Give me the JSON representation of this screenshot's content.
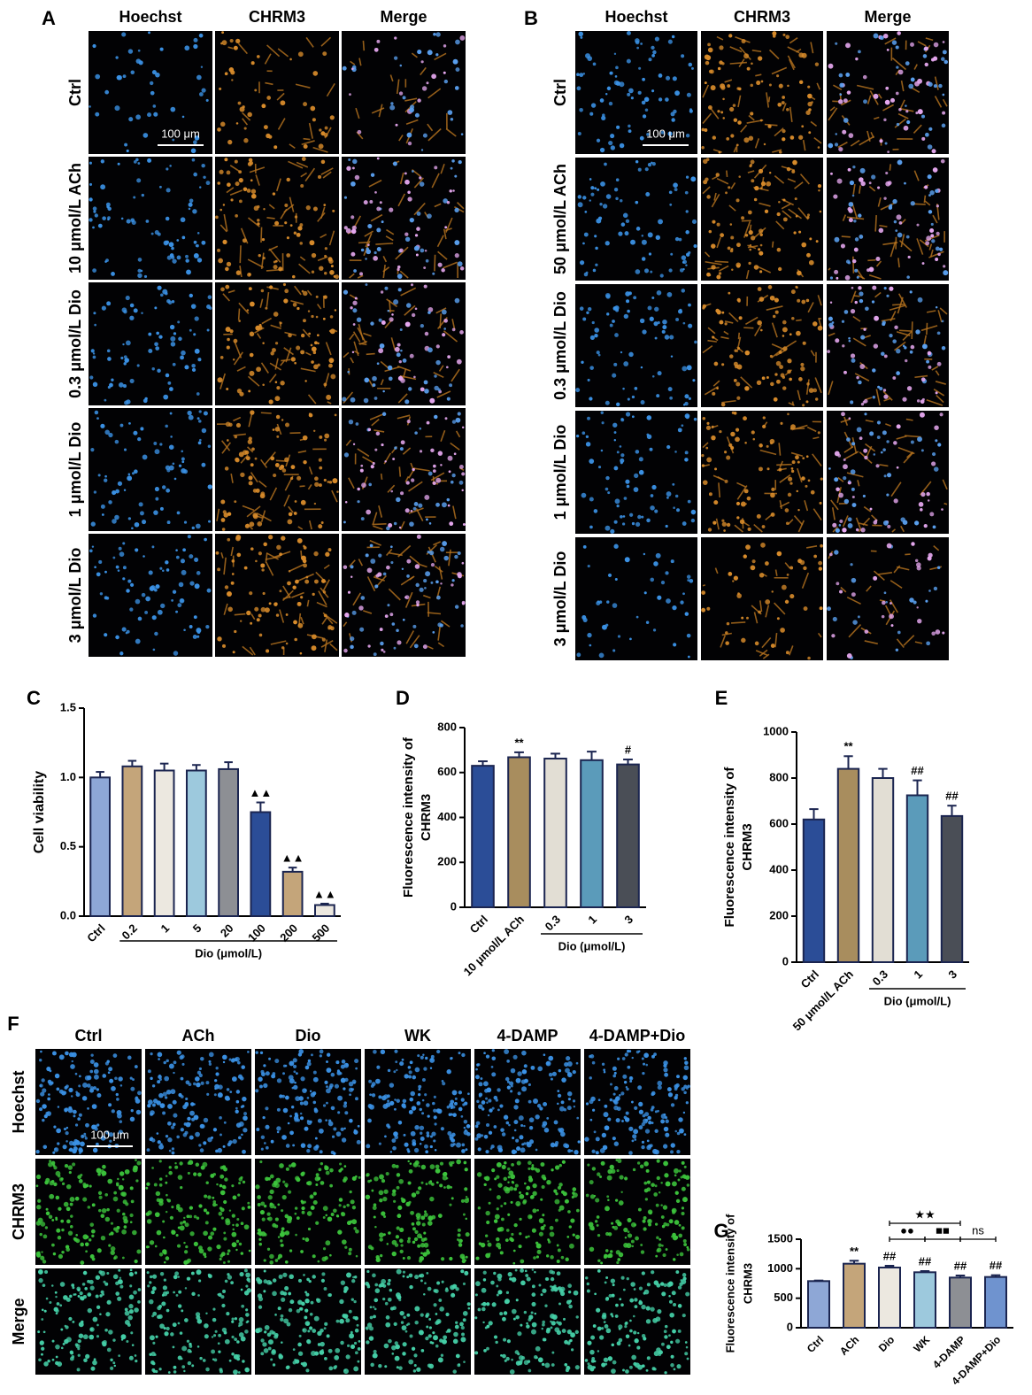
{
  "panels": [
    {
      "letter": "A",
      "columns": [
        "Hoechst",
        "CHRM3",
        "Merge"
      ],
      "rows": [
        "Ctrl",
        "10 μmol/L ACh",
        "0.3 μmol/L Dio",
        "1 μmol/L Dio",
        "3 μmol/L Dio"
      ],
      "scale_bar": "100 μm"
    },
    {
      "letter": "B",
      "columns": [
        "Hoechst",
        "CHRM3",
        "Merge"
      ],
      "rows": [
        "Ctrl",
        "50 μmol/L ACh",
        "0.3 μmol/L Dio",
        "1 μmol/L Dio",
        "3 μmol/L Dio"
      ],
      "scale_bar": "100 μm"
    },
    {
      "letter": "F",
      "columns": [
        "Ctrl",
        "ACh",
        "Dio",
        "WK",
        "4-DAMP",
        "4-DAMP+Dio"
      ],
      "rows": [
        "Hoechst",
        "CHRM3",
        "Merge"
      ],
      "scale_bar": "100 μm"
    }
  ],
  "chart_data": [
    {
      "type": "bar",
      "panel": "C",
      "ylabel": [
        "Cell viability"
      ],
      "categories": [
        "Ctrl",
        "0.2",
        "1",
        "5",
        "20",
        "100",
        "200",
        "500"
      ],
      "values": [
        1.0,
        1.08,
        1.05,
        1.05,
        1.06,
        0.75,
        0.32,
        0.08
      ],
      "errors": [
        0.04,
        0.04,
        0.05,
        0.04,
        0.05,
        0.07,
        0.03,
        0.01
      ],
      "colors": [
        "#8ea7d6",
        "#c4a57a",
        "#ece8e0",
        "#9dc9dd",
        "#8d8f94",
        "#2b4d97",
        "#c4a57a",
        "#ece8e0"
      ],
      "annotations": [
        null,
        null,
        null,
        null,
        null,
        "▲▲",
        "▲▲",
        "▲▲"
      ],
      "group": {
        "label": "Dio (μmol/L)",
        "from": "0.2",
        "to": "500"
      },
      "ylim": [
        0,
        1.5
      ],
      "yticks": [
        {
          "value": 0,
          "label": "0.0"
        },
        0.5,
        {
          "value": 1,
          "label": "1.0"
        },
        1.5
      ]
    },
    {
      "type": "bar",
      "panel": "D",
      "ylabel": [
        "Fluorescence intensity of",
        "CHRM3"
      ],
      "categories": [
        "Ctrl",
        "10 μmol/L ACh",
        "0.3",
        "1",
        "3"
      ],
      "values": [
        630,
        668,
        662,
        655,
        636
      ],
      "errors": [
        20,
        22,
        22,
        38,
        22
      ],
      "colors": [
        "#2b4d97",
        "#a88d5e",
        "#e2ded4",
        "#5b9bba",
        "#4a4e56"
      ],
      "annotations": [
        null,
        "**",
        null,
        null,
        "#"
      ],
      "group": {
        "label": "Dio (μmol/L)",
        "from": "0.3",
        "to": "3"
      },
      "ylim": [
        0,
        800
      ],
      "yticks": [
        0,
        200,
        400,
        600,
        800
      ]
    },
    {
      "type": "bar",
      "panel": "E",
      "ylabel": [
        "Fluorescence intensity of",
        "CHRM3"
      ],
      "categories": [
        "Ctrl",
        "50 μmol/L ACh",
        "0.3",
        "1",
        "3"
      ],
      "values": [
        620,
        840,
        800,
        725,
        635
      ],
      "errors": [
        45,
        55,
        40,
        65,
        45
      ],
      "colors": [
        "#2b4d97",
        "#a88d5e",
        "#e2ded4",
        "#5b9bba",
        "#4a4e56"
      ],
      "annotations": [
        null,
        "**",
        null,
        "##",
        "##"
      ],
      "group": {
        "label": "Dio (μmol/L)",
        "from": "0.3",
        "to": "3"
      },
      "ylim": [
        0,
        1000
      ],
      "yticks": [
        0,
        200,
        400,
        600,
        800,
        1000
      ]
    },
    {
      "type": "bar",
      "panel": "G",
      "ylabel": [
        "Fluorescence intensity of",
        "CHRM3"
      ],
      "categories": [
        "Ctrl",
        "ACh",
        "Dio",
        "WK",
        "4-DAMP",
        "4-DAMP+Dio"
      ],
      "values": [
        790,
        1085,
        1020,
        940,
        850,
        860
      ],
      "errors": [
        10,
        50,
        30,
        20,
        35,
        30
      ],
      "colors": [
        "#8ea7d6",
        "#c4a57a",
        "#ece8e0",
        "#9dc9dd",
        "#8d8f94",
        "#6f93cf"
      ],
      "annotations": [
        null,
        "**",
        "##",
        "##",
        "##",
        "##"
      ],
      "brackets": [
        {
          "from": "Dio",
          "to": "4-DAMP",
          "label": "★★"
        },
        {
          "from": "Dio",
          "to": "WK",
          "label": "●●"
        },
        {
          "from": "WK",
          "to": "4-DAMP",
          "label": "■■"
        },
        {
          "from": "4-DAMP",
          "to": "4-DAMP+Dio",
          "label": "ns"
        }
      ],
      "ylim": [
        0,
        1500
      ],
      "yticks": [
        0,
        500,
        1000,
        1500
      ]
    }
  ]
}
